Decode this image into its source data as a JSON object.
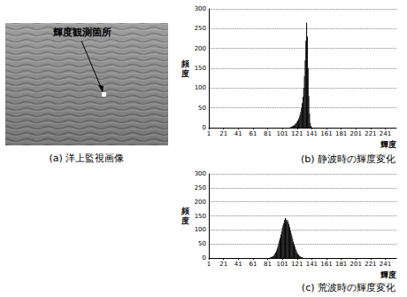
{
  "image": {
    "annotation": "輝度観測箇所",
    "caption": "(a) 洋上監視画像"
  },
  "chart_data": [
    {
      "type": "bar",
      "title": "(b) 静波時の輝度変化",
      "xlabel": "輝度",
      "ylabel": "頻度",
      "x": [
        112,
        113,
        114,
        115,
        116,
        117,
        118,
        119,
        120,
        121,
        122,
        123,
        124,
        125,
        126,
        127,
        128,
        129,
        130,
        131,
        132,
        133,
        134,
        135,
        136,
        137,
        138,
        139,
        140,
        141
      ],
      "values": [
        1,
        2,
        3,
        4,
        5,
        6,
        8,
        10,
        12,
        15,
        18,
        22,
        27,
        33,
        40,
        50,
        62,
        78,
        100,
        130,
        170,
        220,
        265,
        230,
        150,
        80,
        35,
        12,
        4,
        1
      ],
      "color": "#000000",
      "xlim": [
        1,
        256
      ],
      "xticks": [
        1,
        21,
        41,
        61,
        81,
        101,
        121,
        141,
        161,
        181,
        201,
        221,
        241
      ],
      "ylim": [
        0,
        300
      ],
      "yticks": [
        0,
        50,
        100,
        150,
        200,
        250,
        300
      ],
      "grid": true
    },
    {
      "type": "bar",
      "title": "(c) 荒波時の輝度変化",
      "xlabel": "輝度",
      "ylabel": "頻度",
      "x": [
        84,
        85,
        86,
        87,
        88,
        89,
        90,
        91,
        92,
        93,
        94,
        95,
        96,
        97,
        98,
        99,
        100,
        101,
        102,
        103,
        104,
        105,
        106,
        107,
        108,
        109,
        110,
        111,
        112,
        113,
        114,
        115,
        116,
        117,
        118,
        119,
        120,
        121,
        122,
        123,
        124,
        125,
        126,
        127,
        128,
        129
      ],
      "values": [
        1,
        2,
        3,
        4,
        6,
        8,
        11,
        15,
        20,
        26,
        34,
        43,
        52,
        62,
        72,
        84,
        95,
        108,
        118,
        125,
        135,
        142,
        138,
        130,
        136,
        128,
        120,
        110,
        98,
        88,
        78,
        68,
        58,
        48,
        40,
        32,
        26,
        20,
        15,
        11,
        8,
        6,
        4,
        3,
        2,
        1
      ],
      "color": "#000000",
      "xlim": [
        1,
        256
      ],
      "xticks": [
        1,
        21,
        41,
        61,
        81,
        101,
        121,
        141,
        161,
        181,
        201,
        221,
        241
      ],
      "ylim": [
        0,
        300
      ],
      "yticks": [
        0,
        50,
        100,
        150,
        200,
        250,
        300
      ],
      "grid": true
    }
  ]
}
